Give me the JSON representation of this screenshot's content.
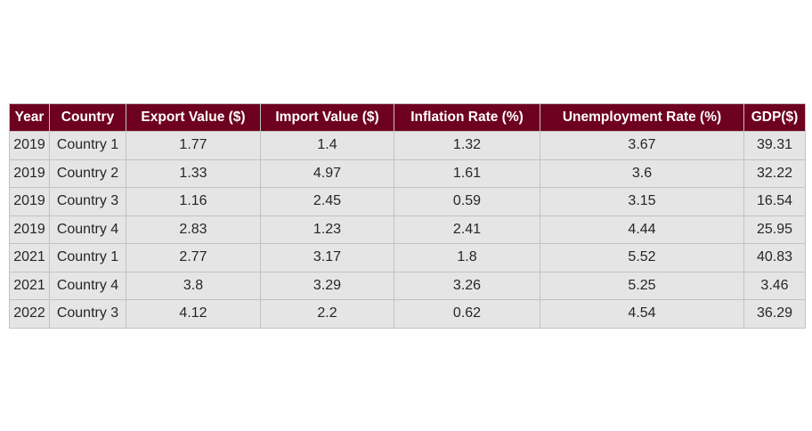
{
  "chart_data": {
    "type": "table",
    "columns": [
      "Year",
      "Country",
      "Export Value ($)",
      "Import Value ($)",
      "Inflation Rate (%)",
      "Unemployment Rate (%)",
      "GDP($)"
    ],
    "rows": [
      [
        "2019",
        "Country 1",
        "1.77",
        "1.4",
        "1.32",
        "3.67",
        "39.31"
      ],
      [
        "2019",
        "Country 2",
        "1.33",
        "4.97",
        "1.61",
        "3.6",
        "32.22"
      ],
      [
        "2019",
        "Country 3",
        "1.16",
        "2.45",
        "0.59",
        "3.15",
        "16.54"
      ],
      [
        "2019",
        "Country 4",
        "2.83",
        "1.23",
        "2.41",
        "4.44",
        "25.95"
      ],
      [
        "2021",
        "Country 1",
        "2.77",
        "3.17",
        "1.8",
        "5.52",
        "40.83"
      ],
      [
        "2021",
        "Country 4",
        "3.8",
        "3.29",
        "3.26",
        "5.25",
        "3.46"
      ],
      [
        "2022",
        "Country 3",
        "4.12",
        "2.2",
        "0.62",
        "4.54",
        "36.29"
      ]
    ]
  },
  "colors": {
    "header_background": "#6e0020",
    "header_text": "#ffffff",
    "cell_background": "#e5e5e5",
    "cell_text": "#262626",
    "border": "#c2c2c2"
  }
}
